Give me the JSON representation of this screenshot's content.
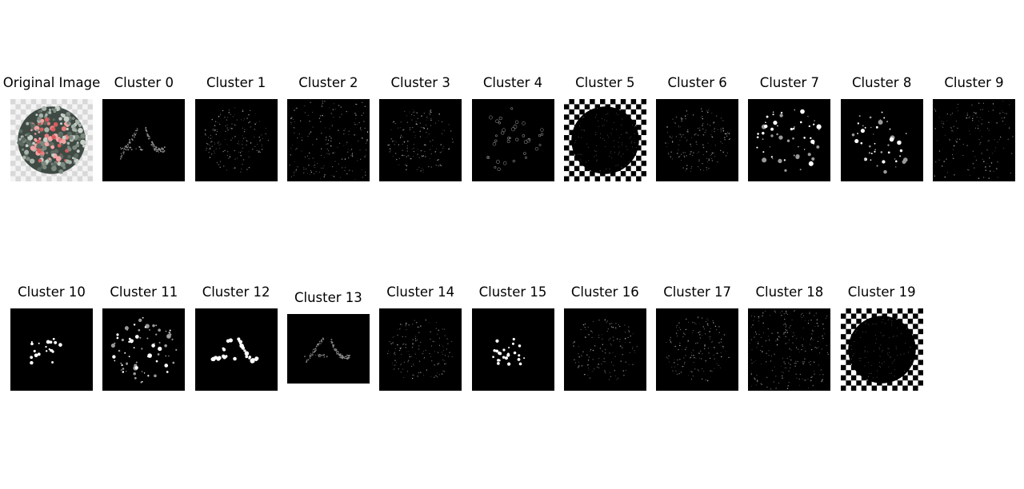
{
  "figure": {
    "panels": [
      {
        "title": "Original Image",
        "kind": "original"
      },
      {
        "title": "Cluster 0",
        "kind": "digits",
        "density": 0.35
      },
      {
        "title": "Cluster 1",
        "kind": "disc",
        "density": 0.6
      },
      {
        "title": "Cluster 2",
        "kind": "square",
        "density": 0.6
      },
      {
        "title": "Cluster 3",
        "kind": "disc",
        "density": 0.6
      },
      {
        "title": "Cluster 4",
        "kind": "rings",
        "density": 0.5
      },
      {
        "title": "Cluster 5",
        "kind": "checker"
      },
      {
        "title": "Cluster 6",
        "kind": "disc",
        "density": 0.7
      },
      {
        "title": "Cluster 7",
        "kind": "bigdots",
        "density": 0.7
      },
      {
        "title": "Cluster 8",
        "kind": "bigdots",
        "density": 0.6
      },
      {
        "title": "Cluster 9",
        "kind": "square",
        "density": 0.45
      },
      {
        "title": "Cluster 10",
        "kind": "fewdots",
        "density": 0.4
      },
      {
        "title": "Cluster 11",
        "kind": "bigdots",
        "density": 0.8
      },
      {
        "title": "Cluster 12",
        "kind": "digitsdots",
        "density": 0.6
      },
      {
        "title": "Cluster 13",
        "kind": "digits",
        "density": 0.35
      },
      {
        "title": "Cluster 14",
        "kind": "disc",
        "density": 0.6
      },
      {
        "title": "Cluster 15",
        "kind": "fewdots",
        "density": 0.7
      },
      {
        "title": "Cluster 16",
        "kind": "disc",
        "density": 0.5
      },
      {
        "title": "Cluster 17",
        "kind": "disc",
        "density": 0.6
      },
      {
        "title": "Cluster 18",
        "kind": "square",
        "density": 0.7
      },
      {
        "title": "Cluster 19",
        "kind": "checker"
      }
    ]
  }
}
